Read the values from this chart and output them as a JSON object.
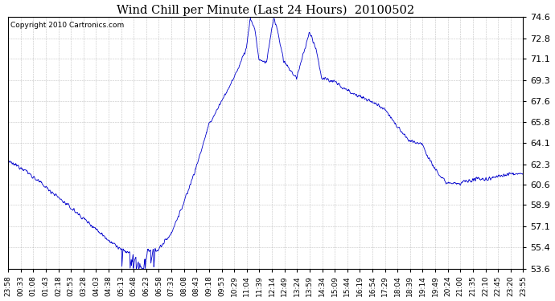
{
  "title": "Wind Chill per Minute (Last 24 Hours)  20100502",
  "copyright_text": "Copyright 2010 Cartronics.com",
  "line_color": "#0000cc",
  "background_color": "#ffffff",
  "grid_color": "#aaaaaa",
  "yticks": [
    53.6,
    55.4,
    57.1,
    58.9,
    60.6,
    62.3,
    64.1,
    65.8,
    67.6,
    69.3,
    71.1,
    72.8,
    74.6
  ],
  "ymin": 53.6,
  "ymax": 74.6,
  "xtick_labels": [
    "23:58",
    "00:33",
    "01:08",
    "01:43",
    "02:18",
    "02:53",
    "03:28",
    "04:03",
    "04:38",
    "05:13",
    "05:48",
    "06:23",
    "06:58",
    "07:33",
    "08:08",
    "08:43",
    "09:18",
    "09:53",
    "10:29",
    "11:04",
    "11:39",
    "12:14",
    "12:49",
    "13:24",
    "13:59",
    "14:34",
    "15:09",
    "15:44",
    "16:19",
    "16:54",
    "17:29",
    "18:04",
    "18:39",
    "19:14",
    "19:49",
    "20:24",
    "21:00",
    "21:35",
    "22:10",
    "22:45",
    "23:20",
    "23:55"
  ],
  "figsize": [
    6.9,
    3.75
  ],
  "dpi": 100
}
